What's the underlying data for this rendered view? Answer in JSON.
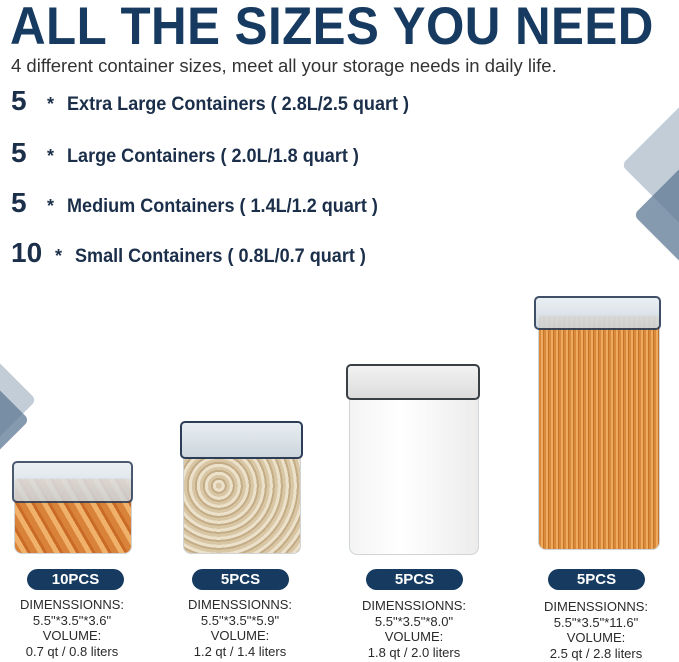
{
  "header": {
    "title": "ALL THE SIZES YOU NEED",
    "subtitle": "4 different container sizes, meet all your storage needs in daily life."
  },
  "size_list": [
    {
      "count": "5",
      "separator": "*",
      "label": "Extra Large Containers ( 2.8L/2.5 quart )"
    },
    {
      "count": "5",
      "separator": "*",
      "label": "Large Containers ( 2.0L/1.8 quart )"
    },
    {
      "count": "5",
      "separator": "*",
      "label": "Medium Containers ( 1.4L/1.2 quart )"
    },
    {
      "count": "10",
      "separator": "*",
      "label": "Small Containers ( 0.8L/0.7 quart )"
    }
  ],
  "products": [
    {
      "badge": "10PCS",
      "dim_label": "DIMENSSIONNS:",
      "dims": "5.5\"*3.5\"*3.6\"",
      "vol_label": "VOLUME:",
      "volume": "0.7 qt / 0.8 liters",
      "contents": "fusilli pasta"
    },
    {
      "badge": "5PCS",
      "dim_label": "DIMENSSIONNS:",
      "dims": "5.5\"*3.5\"*5.9\"",
      "vol_label": "VOLUME:",
      "volume": "1.2 qt / 1.4 liters",
      "contents": "oats"
    },
    {
      "badge": "5PCS",
      "dim_label": "DIMENSSIONNS:",
      "dims": "5.5\"*3.5\"*8.0\"",
      "vol_label": "VOLUME:",
      "volume": "1.8 qt / 2.0 liters",
      "contents": "white"
    },
    {
      "badge": "5PCS",
      "dim_label": "DIMENSSIONNS:",
      "dims": "5.5\"*3.5\"*11.6\"",
      "vol_label": "VOLUME:",
      "volume": "2.5 qt / 2.8 liters",
      "contents": "spaghetti"
    }
  ],
  "colors": {
    "brand": "#173a60",
    "text": "#2a2a2a",
    "deco_light": "#c3cdd8",
    "deco_dark": "#5d7894"
  }
}
